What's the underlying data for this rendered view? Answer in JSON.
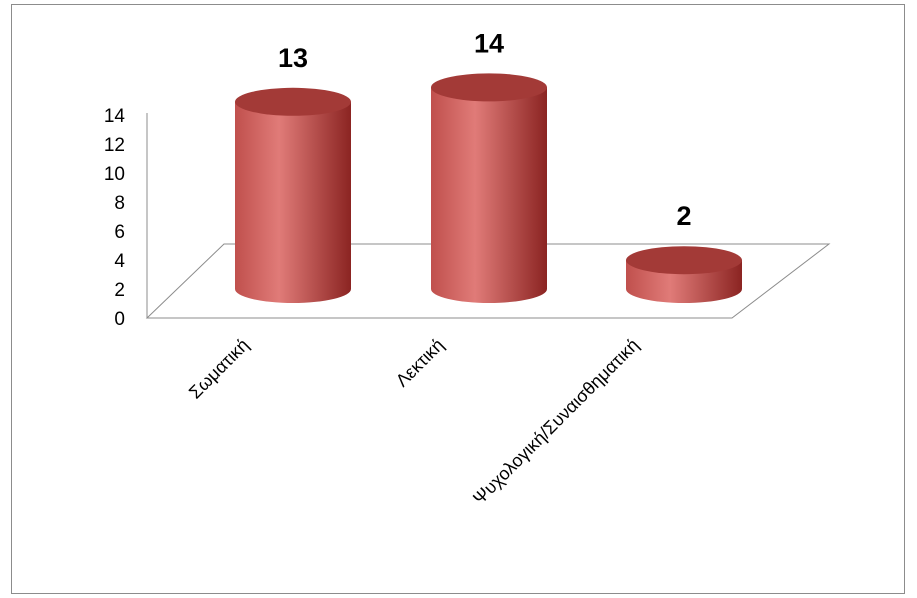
{
  "chart_data": {
    "type": "bar",
    "style": "3d-cylinder",
    "categories": [
      "Σωματική",
      "Λεκτική",
      "Ψυχολογική/Συναισθηματική"
    ],
    "values": [
      13,
      14,
      2
    ],
    "data_labels": [
      "13",
      "14",
      "2"
    ],
    "y_ticks": [
      "0",
      "2",
      "4",
      "6",
      "8",
      "10",
      "12",
      "14"
    ],
    "ylim": [
      0,
      14
    ],
    "title": "",
    "xlabel": "",
    "ylabel": "",
    "grid": false,
    "legend": "none",
    "colors": {
      "bar_body": "#c0504d",
      "bar_light": "#e07b78",
      "bar_dark": "#8b2422",
      "bar_top": "#a33a37",
      "axis": "#8c8c8c"
    }
  }
}
